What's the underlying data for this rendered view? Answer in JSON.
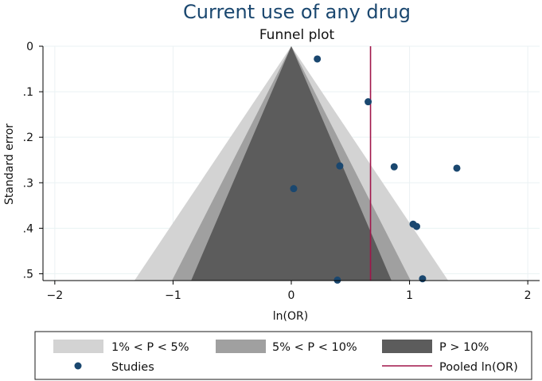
{
  "chart_data": {
    "type": "scatter",
    "title": "Current use of any drug",
    "subtitle": "Funnel plot",
    "xlabel": "ln(OR)",
    "ylabel": "Standard error",
    "xlim": [
      -2.1,
      2.1
    ],
    "ylim": [
      0.515,
      0
    ],
    "y_reversed": true,
    "x_ticks": [
      "−2",
      "−1",
      "0",
      "1",
      "2"
    ],
    "x_tick_values": [
      -2,
      -1,
      0,
      1,
      2
    ],
    "y_ticks": [
      "0",
      ".1",
      ".2",
      ".3",
      ".4",
      ".5"
    ],
    "y_tick_values": [
      0,
      0.1,
      0.2,
      0.3,
      0.4,
      0.5
    ],
    "grid": true,
    "legend_position": "bottom",
    "contours": [
      {
        "name": "1% < P < 5%",
        "z": 2.576,
        "color": "#d3d3d3"
      },
      {
        "name": "5% < P < 10%",
        "z": 1.96,
        "color": "#a0a0a0"
      },
      {
        "name": "P > 10%",
        "z": 1.645,
        "color": "#5c5c5c"
      }
    ],
    "pooled": {
      "name": "Pooled ln(OR)",
      "value": 0.67,
      "color": "#a0154a"
    },
    "series": [
      {
        "name": "Studies",
        "color": "#1a476f",
        "points": [
          {
            "x": 0.22,
            "y": 0.028
          },
          {
            "x": 0.65,
            "y": 0.122
          },
          {
            "x": 0.41,
            "y": 0.263
          },
          {
            "x": 0.87,
            "y": 0.265
          },
          {
            "x": 1.4,
            "y": 0.268
          },
          {
            "x": 0.02,
            "y": 0.313
          },
          {
            "x": 1.03,
            "y": 0.391
          },
          {
            "x": 1.06,
            "y": 0.396
          },
          {
            "x": 0.39,
            "y": 0.514
          },
          {
            "x": 1.11,
            "y": 0.511
          }
        ]
      }
    ]
  }
}
